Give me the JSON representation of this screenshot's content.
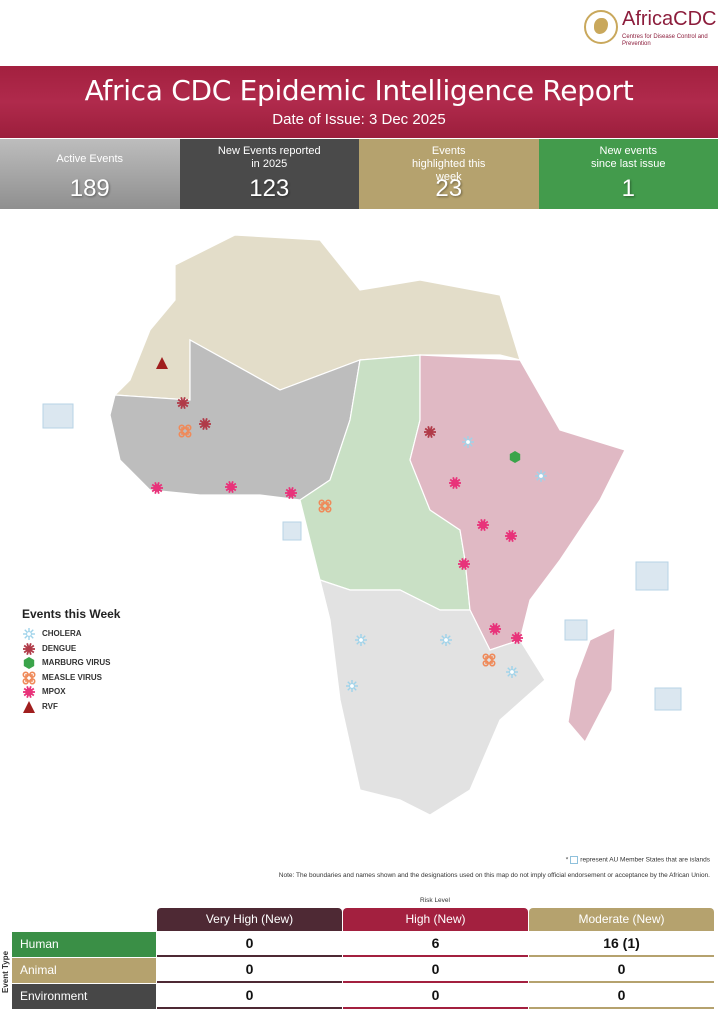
{
  "logo": {
    "title": "AfricaCDC",
    "subtitle": "Centres for Disease Control and Prevention"
  },
  "header": {
    "title": "Africa CDC Epidemic Intelligence Report",
    "date": "Date of Issue: 3 Dec 2025",
    "color": "#a3203f"
  },
  "stats": [
    {
      "label": "Active Events",
      "value": "189",
      "color": "#9e9e9e"
    },
    {
      "label": "New Events reported in 2025",
      "value": "123",
      "color": "#4a4a4a"
    },
    {
      "label": "Events highlighted this week",
      "value": "23",
      "color": "#b5a26e"
    },
    {
      "label": "New events since last issue",
      "value": "1",
      "color": "#3f9a4a"
    }
  ],
  "map": {
    "regions": {
      "north": "#e3ddc9",
      "west": "#bdbdbd",
      "central": "#c9e0c5",
      "east": "#e0b9c4",
      "south": "#e2e2e2"
    },
    "event_counts": {
      "CHOLERA": 6,
      "DENGUE": 3,
      "MARBURG VIRUS": 1,
      "MEASLE VIRUS": 3,
      "MPOX": 9,
      "RVF": 1
    }
  },
  "legend": {
    "title": "Events this Week",
    "items": [
      {
        "label": "CHOLERA",
        "icon": "cholera-icon",
        "color": "#9fd3ea"
      },
      {
        "label": "DENGUE",
        "icon": "dengue-icon",
        "color": "#b03a48"
      },
      {
        "label": "MARBURG VIRUS",
        "icon": "marburg-icon",
        "color": "#3aa44a"
      },
      {
        "label": "MEASLE VIRUS",
        "icon": "measle-icon",
        "color": "#ef8a5a"
      },
      {
        "label": "MPOX",
        "icon": "mpox-icon",
        "color": "#e8337a"
      },
      {
        "label": "RVF",
        "icon": "rvf-icon",
        "color": "#a01e1e"
      }
    ]
  },
  "notes": {
    "islands": "represent AU Member States that are islands",
    "islands_prefix": "*",
    "disclaimer": "Note: The boundaries and names shown and the designations used on this map do not imply official endorsement or acceptance by the African Union."
  },
  "table": {
    "risk_level_label": "Risk Level",
    "event_type_label": "Event Type",
    "columns": [
      {
        "label": "Very High (New)",
        "color": "#4e2934"
      },
      {
        "label": "High (New)",
        "color": "#a3203f"
      },
      {
        "label": "Moderate (New)",
        "color": "#b5a26e"
      }
    ],
    "rows": [
      {
        "label": "Human",
        "color": "#3a8f46",
        "values": [
          "0",
          "6",
          "16 (1)"
        ]
      },
      {
        "label": "Animal",
        "color": "#b5a26e",
        "values": [
          "0",
          "0",
          "0"
        ]
      },
      {
        "label": "Environment",
        "color": "#474747",
        "values": [
          "0",
          "0",
          "0"
        ]
      }
    ]
  }
}
